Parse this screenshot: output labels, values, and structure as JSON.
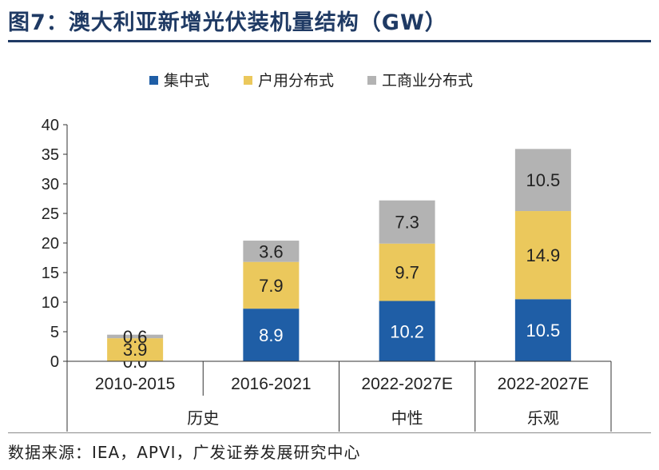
{
  "figure": {
    "title": "图7：澳大利亚新增光伏装机量结构（GW）",
    "source": "数据来源：IEA，APVI，广发证券发展研究中心"
  },
  "chart_data": {
    "type": "bar",
    "stacked": true,
    "categories": [
      "2010-2015",
      "2016-2021",
      "2022-2027E",
      "2022-2027E"
    ],
    "groups": [
      {
        "label": "历史",
        "categories": [
          "2010-2015",
          "2016-2021"
        ]
      },
      {
        "label": "中性",
        "categories": [
          "2022-2027E"
        ]
      },
      {
        "label": "乐观",
        "categories": [
          "2022-2027E"
        ]
      }
    ],
    "series": [
      {
        "name": "集中式",
        "color": "#1f5ea6",
        "values": [
          0.0,
          8.9,
          10.2,
          10.5
        ]
      },
      {
        "name": "户用分布式",
        "color": "#ebc85c",
        "values": [
          3.9,
          7.9,
          9.7,
          14.9
        ]
      },
      {
        "name": "工商业分布式",
        "color": "#b3b3b3",
        "values": [
          0.6,
          3.6,
          7.3,
          10.5
        ]
      }
    ],
    "data_labels": [
      [
        "0.0",
        "8.9",
        "10.2",
        "10.5"
      ],
      [
        "3.9",
        "7.9",
        "9.7",
        "14.9"
      ],
      [
        "0.6",
        "3.6",
        "7.3",
        "10.5"
      ]
    ],
    "ylim": [
      0,
      40
    ],
    "yticks": [
      0,
      5,
      10,
      15,
      20,
      25,
      30,
      35,
      40
    ],
    "legend_position": "top",
    "grid": false
  }
}
